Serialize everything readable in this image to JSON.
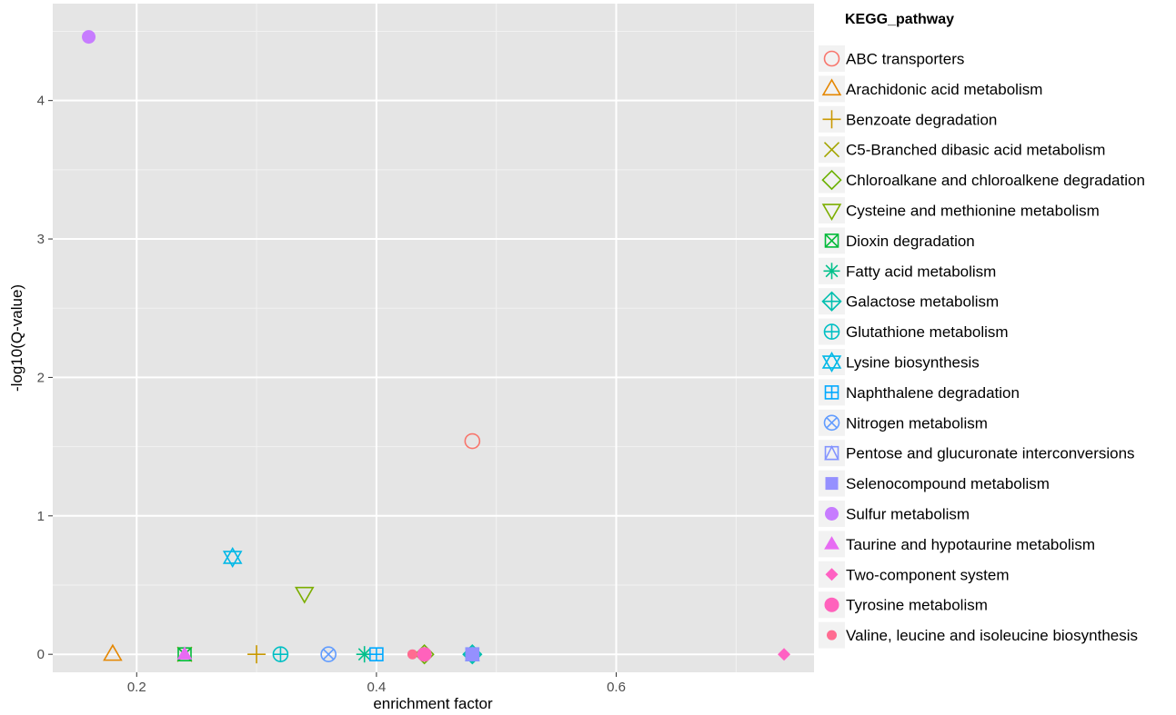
{
  "chart_data": {
    "type": "scatter",
    "xlabel": "enrichment factor",
    "ylabel": "-log10(Q-value)",
    "xlim": [
      0.13,
      0.765
    ],
    "ylim": [
      -0.13,
      4.7
    ],
    "x_ticks": [
      0.2,
      0.4,
      0.6
    ],
    "x_tick_labels": [
      "0.2",
      "0.4",
      "0.6"
    ],
    "y_ticks": [
      0,
      1,
      2,
      3,
      4
    ],
    "y_tick_labels": [
      "0",
      "1",
      "2",
      "3",
      "4"
    ],
    "grid": true,
    "legend": {
      "title": "KEGG_pathway",
      "position": "right"
    },
    "series": [
      {
        "name": "ABC transporters",
        "color": "#F8766D",
        "shape": "circle-open",
        "points": [
          [
            0.48,
            1.54
          ]
        ]
      },
      {
        "name": "Arachidonic acid metabolism",
        "color": "#E58700",
        "shape": "triangle-open",
        "points": [
          [
            0.18,
            0.0
          ]
        ]
      },
      {
        "name": "Benzoate degradation",
        "color": "#C99800",
        "shape": "plus",
        "points": [
          [
            0.3,
            0.0
          ]
        ]
      },
      {
        "name": "C5-Branched dibasic acid metabolism",
        "color": "#A3A500",
        "shape": "cross",
        "points": [
          [
            0.24,
            0.0
          ]
        ]
      },
      {
        "name": "Chloroalkane and chloroalkene degradation",
        "color": "#6BB100",
        "shape": "diamond-open",
        "points": [
          [
            0.44,
            0.0
          ]
        ]
      },
      {
        "name": "Cysteine and methionine metabolism",
        "color": "#7CAE00",
        "shape": "triangle-down-open",
        "points": [
          [
            0.34,
            0.44
          ]
        ]
      },
      {
        "name": "Dioxin degradation",
        "color": "#00BA38",
        "shape": "square-cross",
        "points": [
          [
            0.24,
            0.0
          ]
        ]
      },
      {
        "name": "Fatty acid metabolism",
        "color": "#00C08B",
        "shape": "asterisk",
        "points": [
          [
            0.39,
            0.0
          ]
        ]
      },
      {
        "name": "Galactose metabolism",
        "color": "#00BFAF",
        "shape": "diamond-plus",
        "points": [
          [
            0.48,
            0.0
          ]
        ]
      },
      {
        "name": "Glutathione metabolism",
        "color": "#00BFC4",
        "shape": "circle-plus",
        "points": [
          [
            0.32,
            0.0
          ]
        ]
      },
      {
        "name": "Lysine biosynthesis",
        "color": "#00B8E7",
        "shape": "star-of-david",
        "points": [
          [
            0.28,
            0.7
          ]
        ]
      },
      {
        "name": "Naphthalene degradation",
        "color": "#00A9FF",
        "shape": "square-plus",
        "points": [
          [
            0.4,
            0.0
          ]
        ]
      },
      {
        "name": "Nitrogen metabolism",
        "color": "#619CFF",
        "shape": "circle-cross",
        "points": [
          [
            0.36,
            0.0
          ]
        ]
      },
      {
        "name": "Pentose and glucuronate interconversions",
        "color": "#8494FF",
        "shape": "square-triangle",
        "points": [
          [
            0.48,
            0.0
          ]
        ]
      },
      {
        "name": "Selenocompound metabolism",
        "color": "#9590FF",
        "shape": "square-filled",
        "points": [
          [
            0.48,
            0.0
          ]
        ]
      },
      {
        "name": "Sulfur metabolism",
        "color": "#C77CFF",
        "shape": "circle-filled",
        "points": [
          [
            0.16,
            4.46
          ]
        ]
      },
      {
        "name": "Taurine and hypotaurine metabolism",
        "color": "#E76BF3",
        "shape": "triangle-filled",
        "points": [
          [
            0.24,
            0.0
          ]
        ]
      },
      {
        "name": "Two-component system",
        "color": "#FF61C3",
        "shape": "diamond-filled",
        "points": [
          [
            0.74,
            0.0
          ],
          [
            0.44,
            0.0
          ]
        ]
      },
      {
        "name": "Tyrosine metabolism",
        "color": "#FF62BC",
        "shape": "circle-large-filled",
        "points": [
          [
            0.44,
            0.0
          ]
        ]
      },
      {
        "name": "Valine, leucine and isoleucine biosynthesis",
        "color": "#FF6C91",
        "shape": "circle-small-filled",
        "points": [
          [
            0.43,
            0.0
          ]
        ]
      }
    ]
  }
}
